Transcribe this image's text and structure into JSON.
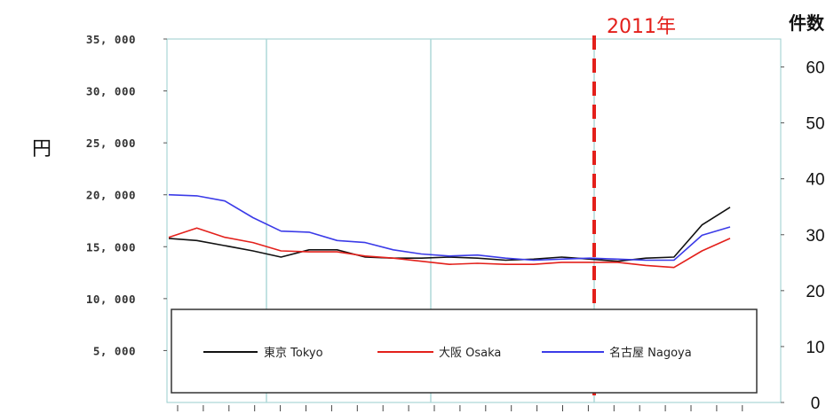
{
  "chart_data": {
    "type": "line",
    "ylabel_left": "円",
    "ylabel_right": "件数",
    "marker_label": "2011年",
    "y_left_ticks": [
      "35, 000",
      "30, 000",
      "25, 000",
      "20, 000",
      "15, 000",
      "10, 000",
      "5, 000"
    ],
    "y_left_tick_values": [
      35000,
      30000,
      25000,
      20000,
      15000,
      10000,
      5000
    ],
    "y_left_range": [
      0,
      35000
    ],
    "y_right_ticks": [
      "60",
      "50",
      "40",
      "30",
      "20",
      "10",
      "0"
    ],
    "y_right_tick_values": [
      60,
      50,
      40,
      30,
      20,
      10,
      0
    ],
    "y_right_range": [
      0,
      65
    ],
    "marker_x_index": 15,
    "series": [
      {
        "name": "東京 Tokyo",
        "color": "#111111",
        "values": [
          15800,
          15600,
          15100,
          14600,
          14000,
          14700,
          14700,
          14000,
          13900,
          13900,
          14000,
          13900,
          13700,
          13800,
          14000,
          13800,
          13600,
          13900,
          14000,
          17100,
          18800
        ]
      },
      {
        "name": "大阪 Osaka",
        "color": "#e3201b",
        "values": [
          15900,
          16800,
          15900,
          15400,
          14600,
          14500,
          14500,
          14100,
          13900,
          13600,
          13300,
          13400,
          13300,
          13300,
          13500,
          13500,
          13500,
          13200,
          13000,
          14600,
          15800
        ]
      },
      {
        "name": "名古屋 Nagoya",
        "color": "#3b3be8",
        "values": [
          20000,
          19900,
          19400,
          17800,
          16500,
          16400,
          15600,
          15400,
          14700,
          14300,
          14100,
          14200,
          13900,
          13700,
          13800,
          13900,
          13800,
          13700,
          13700,
          16100,
          16900
        ]
      }
    ],
    "legend": "inside-bottom",
    "grid": true
  }
}
